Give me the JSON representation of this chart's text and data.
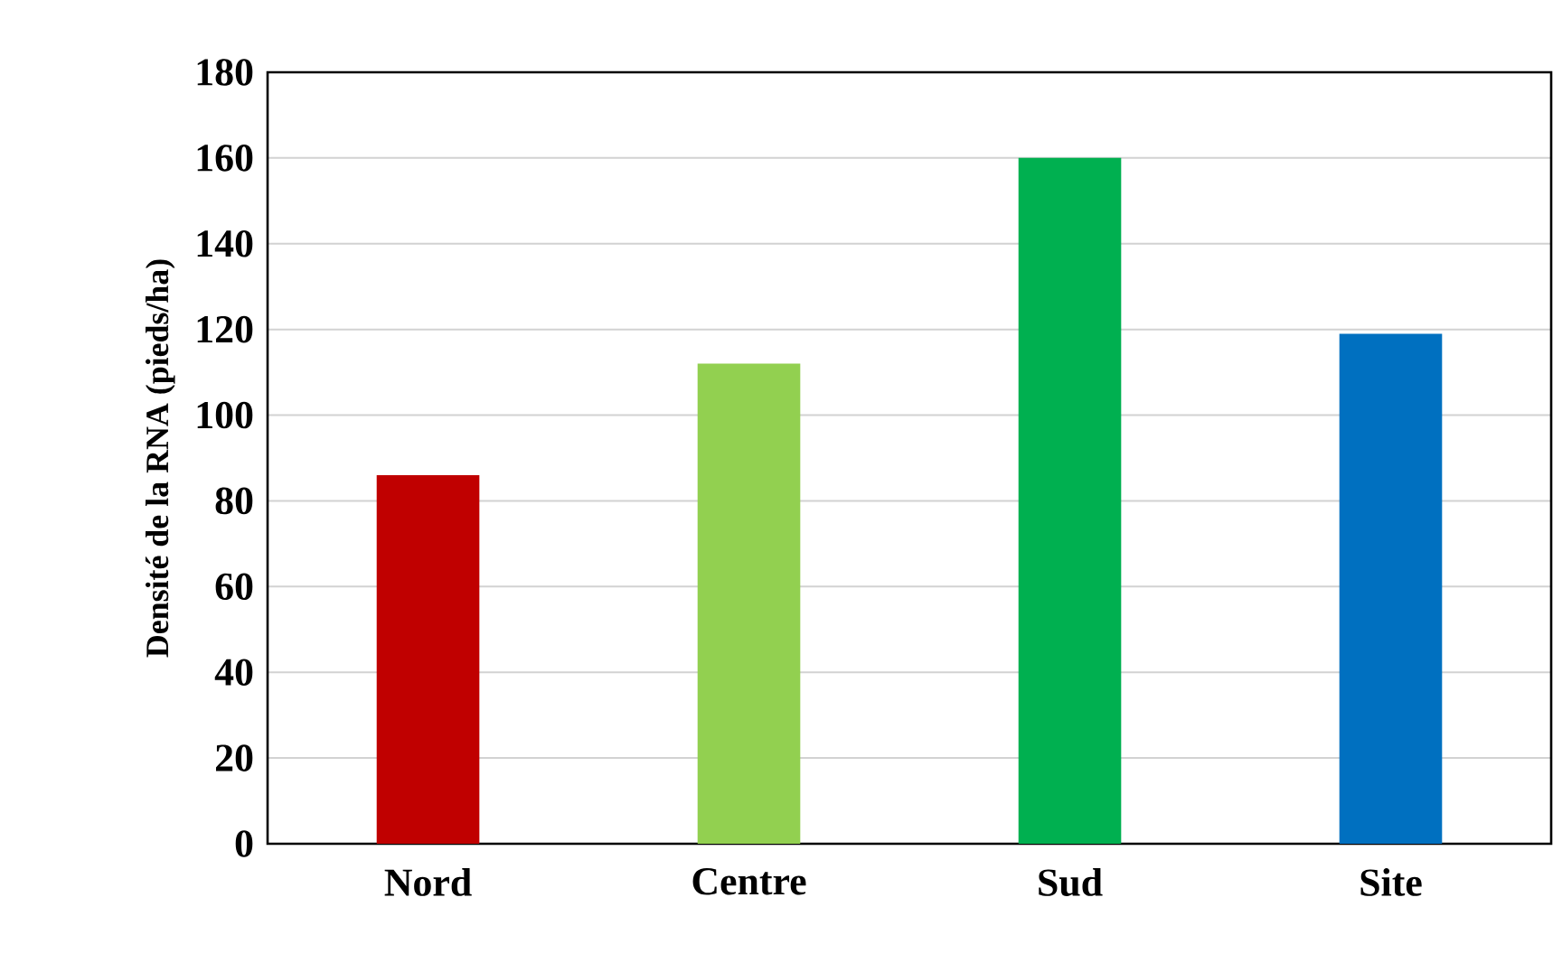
{
  "chart_data": {
    "type": "bar",
    "ylabel": "Densité de la RNA (pieds/ha)",
    "categories": [
      "Nord",
      "Centre",
      "Sud",
      "Site"
    ],
    "values": [
      86,
      112,
      160,
      119
    ],
    "colors": [
      "#c00000",
      "#92d050",
      "#00b050",
      "#0070c0"
    ],
    "ylim": [
      0,
      180
    ],
    "yticks": [
      0,
      20,
      40,
      60,
      80,
      100,
      120,
      140,
      160,
      180
    ],
    "grid": "y"
  }
}
